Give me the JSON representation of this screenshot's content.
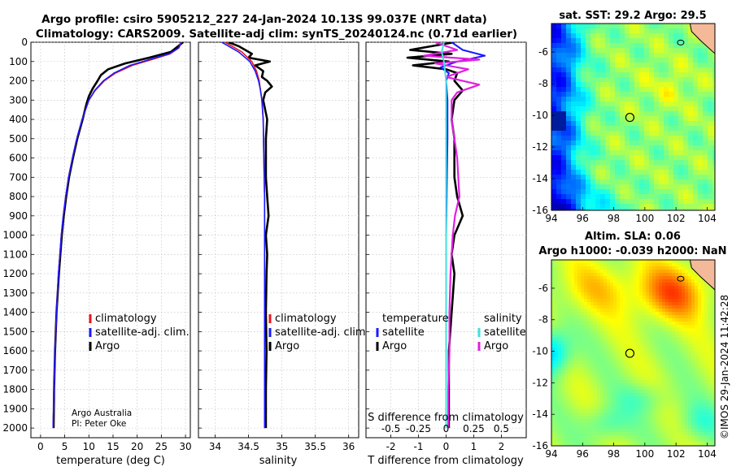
{
  "title_line1": "Argo profile: csiro 5905212_227 24-Jan-2024 10.13S 99.037E (NRT data)",
  "title_line2": "Climatology: CARS2009. Satellite-adj clim: synTS_20240124.nc (0.71d earlier)",
  "credit": {
    "org": "Argo Australia",
    "pi": "PI: Peter Oke"
  },
  "copyright": "©IMOS 29-Jan-2024 11:42:28",
  "colors": {
    "climatology": "#e8161c",
    "satellite_adj": "#1a1aff",
    "argo": "#000000",
    "salinity_sat": "#40e0e0",
    "salinity_argo": "#e020e0"
  },
  "chart_data": [
    {
      "type": "line",
      "xlabel": "temperature (deg C)",
      "ylabel": "",
      "xlim": [
        -2,
        31
      ],
      "ylim": [
        2050,
        0
      ],
      "xticks": [
        "0",
        "5",
        "10",
        "15",
        "20",
        "25",
        "30"
      ],
      "yticks": [
        "0",
        "100",
        "200",
        "300",
        "400",
        "500",
        "600",
        "700",
        "800",
        "900",
        "1000",
        "1100",
        "1200",
        "1300",
        "1400",
        "1500",
        "1600",
        "1700",
        "1800",
        "1900",
        "2000"
      ],
      "legend": [
        "climatology",
        "satellite-adj. clim.",
        "Argo"
      ],
      "series": [
        {
          "name": "climatology",
          "depth": [
            0,
            30,
            60,
            90,
            120,
            160,
            200,
            250,
            300,
            400,
            500,
            600,
            700,
            800,
            900,
            1000,
            1200,
            1400,
            1600,
            1800,
            2000
          ],
          "values": [
            29.0,
            28.6,
            26.8,
            23.0,
            19.0,
            15.5,
            13.2,
            11.3,
            10.0,
            8.6,
            7.5,
            6.6,
            5.8,
            5.2,
            4.7,
            4.3,
            3.7,
            3.3,
            3.0,
            2.8,
            2.6
          ]
        },
        {
          "name": "satellite-adj. clim.",
          "depth": [
            0,
            30,
            60,
            90,
            120,
            160,
            200,
            250,
            300,
            400,
            500,
            600,
            700,
            800,
            900,
            1000,
            1200,
            1400,
            1600,
            1800,
            2000
          ],
          "values": [
            29.2,
            28.6,
            26.6,
            22.5,
            18.5,
            15.2,
            13.0,
            11.2,
            10.0,
            8.6,
            7.5,
            6.6,
            5.8,
            5.2,
            4.7,
            4.3,
            3.7,
            3.3,
            3.0,
            2.8,
            2.6
          ]
        },
        {
          "name": "Argo",
          "depth": [
            0,
            20,
            50,
            80,
            110,
            140,
            170,
            200,
            240,
            280,
            320,
            400,
            500,
            600,
            700,
            800,
            900,
            1000,
            1200,
            1400,
            1600,
            1800,
            2000
          ],
          "values": [
            29.5,
            28.5,
            27.0,
            22.5,
            17.5,
            14.0,
            12.5,
            11.8,
            10.8,
            10.0,
            9.5,
            8.7,
            7.6,
            6.7,
            5.9,
            5.3,
            4.8,
            4.4,
            3.8,
            3.3,
            3.0,
            2.8,
            2.7
          ]
        }
      ]
    },
    {
      "type": "line",
      "xlabel": "salinity",
      "xlim": [
        33.75,
        36.15
      ],
      "ylim": [
        2050,
        0
      ],
      "xticks": [
        "34",
        "34.5",
        "35",
        "35.5",
        "36"
      ],
      "legend": [
        "climatology",
        "satellite-adj. clim.",
        "Argo"
      ],
      "series": [
        {
          "name": "climatology",
          "depth": [
            0,
            50,
            100,
            150,
            200,
            250,
            300,
            400,
            600,
            800,
            1000,
            1500,
            2000
          ],
          "values": [
            34.15,
            34.4,
            34.55,
            34.62,
            34.66,
            34.68,
            34.7,
            34.72,
            34.73,
            34.74,
            34.74,
            34.74,
            34.74
          ]
        },
        {
          "name": "satellite-adj. clim.",
          "depth": [
            0,
            50,
            100,
            150,
            200,
            250,
            300,
            400,
            600,
            800,
            1000,
            1500,
            2000
          ],
          "values": [
            34.1,
            34.35,
            34.52,
            34.6,
            34.65,
            34.68,
            34.7,
            34.72,
            34.73,
            34.74,
            34.74,
            34.74,
            34.74
          ]
        },
        {
          "name": "Argo",
          "depth": [
            0,
            20,
            40,
            60,
            80,
            100,
            120,
            150,
            180,
            200,
            230,
            260,
            300,
            400,
            500,
            700,
            800,
            900,
            1000,
            1100,
            1200,
            1400,
            1600,
            1800,
            2000
          ],
          "values": [
            34.2,
            34.35,
            34.45,
            34.55,
            34.5,
            34.82,
            34.6,
            34.72,
            34.7,
            34.78,
            34.85,
            34.75,
            34.72,
            34.78,
            34.76,
            34.76,
            34.78,
            34.8,
            34.76,
            34.78,
            34.77,
            34.76,
            34.77,
            34.76,
            34.76
          ]
        }
      ]
    },
    {
      "type": "line",
      "xlabel": "T difference from climatology",
      "xlabel_top": "S difference from climatology",
      "xlim": [
        -2.9,
        2.9
      ],
      "ylim": [
        2050,
        0
      ],
      "xticks": [
        "-2",
        "-1",
        "0",
        "1",
        "2"
      ],
      "sticks": [
        "-0.5",
        "-0.25",
        "0",
        "0.25",
        "0.5"
      ],
      "legend_temperature": {
        "title": "temperature",
        "items": [
          "satellite",
          "Argo"
        ]
      },
      "legend_salinity": {
        "title": "salinity",
        "items": [
          "satellite",
          "Argo"
        ]
      },
      "series": [
        {
          "name": "T satellite",
          "depth": [
            0,
            40,
            70,
            100,
            130,
            160,
            200,
            300,
            500,
            1000,
            2000
          ],
          "values": [
            0.2,
            0.6,
            1.4,
            0.4,
            -0.2,
            0.1,
            0.0,
            0.05,
            0.05,
            0.0,
            0.0
          ]
        },
        {
          "name": "T Argo",
          "depth": [
            0,
            40,
            60,
            80,
            100,
            120,
            140,
            160,
            200,
            250,
            300,
            400,
            500,
            600,
            700,
            800,
            900,
            1000,
            1100,
            1200,
            1400,
            1600,
            1800,
            2000
          ],
          "values": [
            0.3,
            -1.3,
            0.2,
            -1.4,
            0.1,
            -1.2,
            0.0,
            0.4,
            0.3,
            0.6,
            0.3,
            0.2,
            0.3,
            0.3,
            0.3,
            0.4,
            0.6,
            0.3,
            0.2,
            0.3,
            0.2,
            0.1,
            0.1,
            0.1
          ]
        },
        {
          "name": "S satellite",
          "depth": [
            0,
            50,
            100,
            200,
            400,
            800,
            1200,
            1600,
            2000
          ],
          "values": [
            -0.02,
            -0.04,
            -0.02,
            0.0,
            0.0,
            0.0,
            0.0,
            0.0,
            0.0
          ]
        },
        {
          "name": "S Argo",
          "depth": [
            0,
            40,
            70,
            90,
            110,
            140,
            180,
            220,
            260,
            300,
            400,
            600,
            800,
            900,
            1000,
            1200,
            1400,
            1600,
            1800,
            2000
          ],
          "values": [
            -0.1,
            0.1,
            -0.2,
            0.3,
            -0.1,
            0.2,
            0.0,
            0.3,
            0.1,
            0.05,
            0.05,
            0.1,
            0.12,
            0.08,
            0.06,
            0.04,
            0.03,
            0.03,
            0.02,
            0.02
          ]
        }
      ]
    },
    {
      "type": "heatmap",
      "title": "sat. SST: 29.2 Argo: 29.5",
      "xlim": [
        94,
        104.5
      ],
      "ylim": [
        -16,
        -4.2
      ],
      "xticks": [
        "94",
        "96",
        "98",
        "100",
        "102",
        "104"
      ],
      "yticks": [
        "-6",
        "-8",
        "-10",
        "-12",
        "-14",
        "-16"
      ],
      "argo_position": {
        "lon": 99.037,
        "lat": -10.13
      }
    },
    {
      "type": "heatmap",
      "title_line1": "Altim. SLA: 0.06",
      "title_line2": "Argo h1000: -0.039 h2000: NaN",
      "xlim": [
        94,
        104.5
      ],
      "ylim": [
        -16,
        -4.2
      ],
      "xticks": [
        "94",
        "96",
        "98",
        "100",
        "102",
        "104"
      ],
      "yticks": [
        "-6",
        "-8",
        "-10",
        "-12",
        "-14",
        "-16"
      ],
      "argo_position": {
        "lon": 99.037,
        "lat": -10.13
      }
    }
  ]
}
